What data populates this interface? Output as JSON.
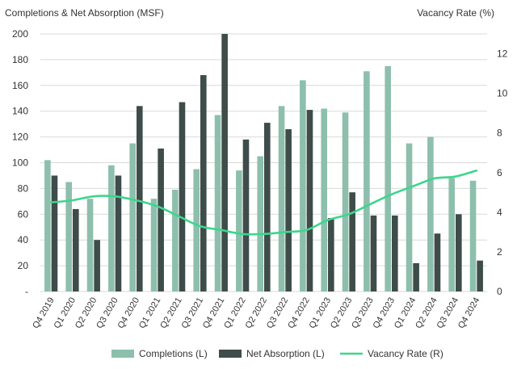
{
  "chart_data": {
    "type": "bar",
    "title_left": "Completions & Net Absorption (MSF)",
    "title_right": "Vacancy Rate (%)",
    "categories": [
      "Q4 2019",
      "Q1 2020",
      "Q2 2020",
      "Q3 2020",
      "Q4 2020",
      "Q1 2021",
      "Q2 2021",
      "Q3 2021",
      "Q4 2021",
      "Q1 2022",
      "Q2 2022",
      "Q3 2022",
      "Q4 2022",
      "Q1 2023",
      "Q2 2023",
      "Q3 2023",
      "Q4 2023",
      "Q1 2024",
      "Q2 2024",
      "Q3 2024",
      "Q4 2024"
    ],
    "ylim_left": [
      0,
      200
    ],
    "ytick_labels_left": [
      "-",
      "20",
      "40",
      "60",
      "80",
      "100",
      "120",
      "140",
      "160",
      "180",
      "200"
    ],
    "ylim_right": [
      0,
      13
    ],
    "yticks_right": [
      0,
      2,
      4,
      6,
      8,
      10,
      12
    ],
    "grid": true,
    "legend_position": "bottom",
    "series": [
      {
        "name": "Completions (L)",
        "type": "bar",
        "axis": "left",
        "color": "#8dbfac",
        "values": [
          102,
          85,
          72,
          98,
          115,
          72,
          79,
          95,
          137,
          94,
          105,
          144,
          164,
          142,
          139,
          171,
          175,
          115,
          120,
          88,
          86
        ]
      },
      {
        "name": "Net Absorption (L)",
        "type": "bar",
        "axis": "left",
        "color": "#3e4c4a",
        "values": [
          90,
          64,
          40,
          90,
          144,
          111,
          147,
          168,
          200,
          118,
          131,
          126,
          141,
          57,
          77,
          59,
          59,
          22,
          45,
          60,
          24
        ]
      },
      {
        "name": "Vacancy Rate (R)",
        "type": "line",
        "axis": "right",
        "color": "#3cd68c",
        "values": [
          4.5,
          4.6,
          4.8,
          4.8,
          4.6,
          4.3,
          3.8,
          3.3,
          3.1,
          2.9,
          2.9,
          3.0,
          3.1,
          3.6,
          3.9,
          4.4,
          4.9,
          5.3,
          5.7,
          5.8,
          6.1
        ]
      }
    ]
  }
}
